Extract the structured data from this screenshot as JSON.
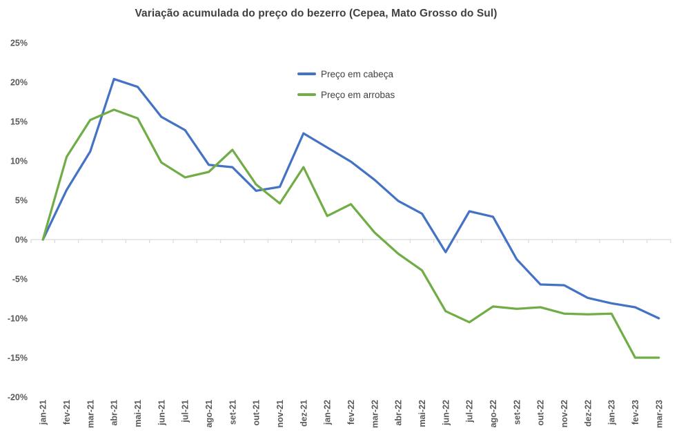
{
  "colors": {
    "series_cabeca": "#4472C4",
    "series_arrobas": "#70AD47",
    "axis_text": "#595959",
    "title_text": "#404040",
    "gridline": "#D9D9D9",
    "background": "#FFFFFF"
  },
  "chart_data": {
    "type": "line",
    "title": "Variação acumulada do preço do bezerro (Cepea, Mato Grosso do Sul)",
    "xlabel": "",
    "ylabel": "",
    "categories": [
      "jan-21",
      "fev-21",
      "mar-21",
      "abr-21",
      "mai-21",
      "jun-21",
      "jul-21",
      "ago-21",
      "set-21",
      "out-21",
      "nov-21",
      "dez-21",
      "jan-22",
      "fev-22",
      "mar-22",
      "abr-22",
      "mai-22",
      "jun-22",
      "jul-22",
      "ago-22",
      "set-22",
      "out-22",
      "nov-22",
      "dez-22",
      "jan-23",
      "fev-23",
      "mar-23"
    ],
    "series": [
      {
        "name": "Preço em cabeça",
        "color": "#4472C4",
        "values": [
          0,
          6.3,
          11.2,
          20.4,
          19.4,
          15.6,
          13.9,
          9.5,
          9.2,
          6.2,
          6.7,
          13.5,
          11.7,
          9.9,
          7.6,
          4.9,
          3.3,
          -1.6,
          3.6,
          2.9,
          -2.5,
          -5.7,
          -5.8,
          -7.4,
          -8.1,
          -8.6,
          -10.0
        ]
      },
      {
        "name": "Preço em arrobas",
        "color": "#70AD47",
        "values": [
          0,
          10.5,
          15.2,
          16.5,
          15.4,
          9.8,
          7.9,
          8.6,
          11.4,
          7.0,
          4.6,
          9.2,
          3.0,
          4.5,
          0.9,
          -1.8,
          -3.9,
          -9.1,
          -10.5,
          -8.5,
          -8.8,
          -8.6,
          -9.4,
          -9.5,
          -9.4,
          -15.0,
          -15.0
        ]
      }
    ],
    "y_ticks": [
      25,
      20,
      15,
      10,
      5,
      0,
      -5,
      -10,
      -15,
      -20
    ],
    "y_tick_suffix": "%",
    "ylim": [
      -20,
      25
    ],
    "grid": "zero-line-only",
    "x_label_rotation": 90,
    "legend_position": "inside-upper-center"
  }
}
